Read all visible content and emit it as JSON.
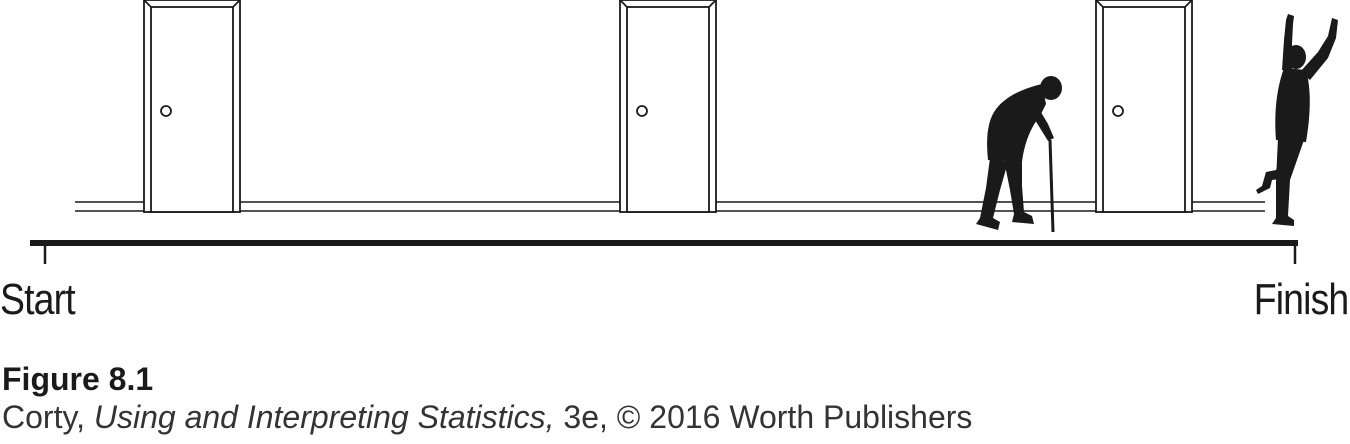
{
  "diagram": {
    "start_label": "Start",
    "finish_label": "Finish",
    "doors": [
      "door-1",
      "door-2",
      "door-3"
    ],
    "figures": [
      "elderly-walker-with-cane",
      "celebrating-runner"
    ],
    "line_color": "#1a1a1a"
  },
  "caption": {
    "figure_number": "Figure 8.1",
    "author": "Corty, ",
    "book_title": "Using and Interpreting Statistics,",
    "edition_and_copyright": " 3e, © 2016 Worth Publishers"
  }
}
